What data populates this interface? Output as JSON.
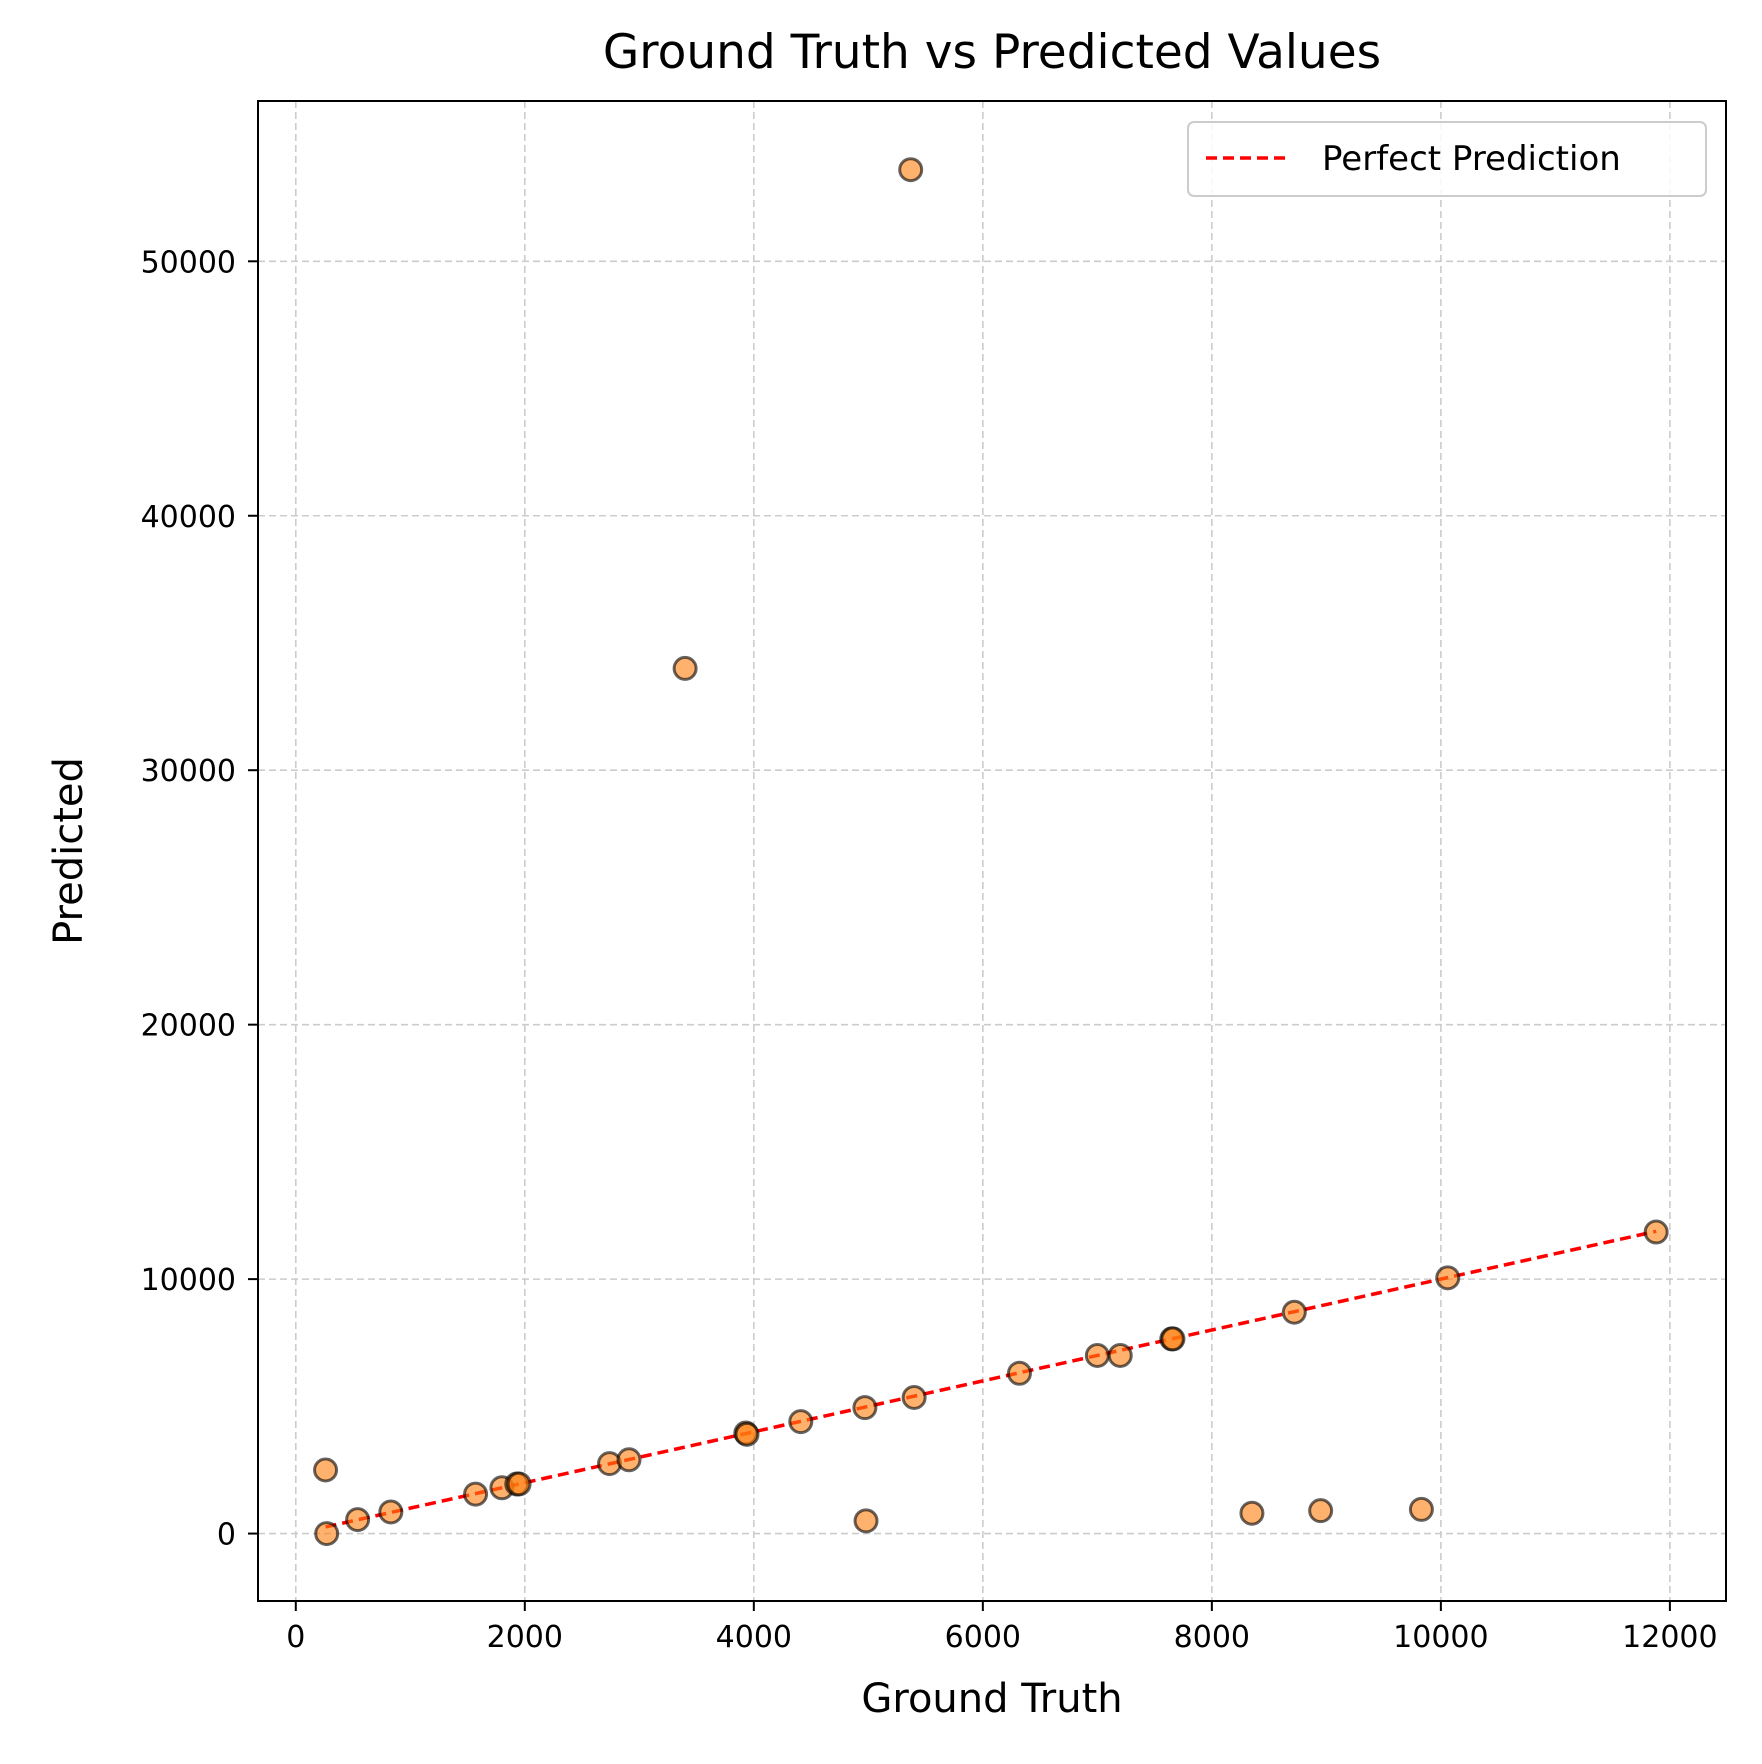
{
  "chart_data": {
    "type": "scatter",
    "title": "Ground Truth vs Predicted Values",
    "xlabel": "Ground Truth",
    "ylabel": "Predicted",
    "xlim": [
      -330,
      12490
    ],
    "ylim": [
      -2650,
      56300
    ],
    "xticks": [
      0,
      2000,
      4000,
      6000,
      8000,
      10000,
      12000
    ],
    "yticks": [
      0,
      10000,
      20000,
      30000,
      40000,
      50000
    ],
    "xtick_labels": [
      "0",
      "2000",
      "4000",
      "6000",
      "8000",
      "10000",
      "12000"
    ],
    "ytick_labels": [
      "0",
      "10000",
      "20000",
      "30000",
      "40000",
      "50000"
    ],
    "grid": true,
    "legend_position": "top-right",
    "colors": {
      "point_fill": "#ff7f0e",
      "point_edge": "#000000",
      "perfect_line": "#ff0000",
      "grid": "#cccccc"
    },
    "series": [
      {
        "name": "",
        "type": "scatter",
        "x": [
          260,
          270,
          540,
          830,
          1570,
          1800,
          1930,
          1950,
          2740,
          2910,
          3400,
          3930,
          3940,
          4410,
          4970,
          4980,
          5370,
          5400,
          6320,
          7000,
          7200,
          7650,
          7660,
          8350,
          8720,
          8950,
          9830,
          10060,
          11880
        ],
        "y": [
          2500,
          0,
          550,
          850,
          1550,
          1800,
          1950,
          1950,
          2750,
          2900,
          34000,
          3950,
          3900,
          4400,
          4950,
          500,
          53600,
          5350,
          6300,
          7000,
          7000,
          7650,
          7650,
          800,
          8700,
          900,
          950,
          10050,
          11850
        ]
      },
      {
        "name": "Perfect Prediction",
        "type": "line",
        "style": "dashed",
        "x": [
          260,
          11880
        ],
        "y": [
          260,
          11880
        ]
      }
    ]
  }
}
